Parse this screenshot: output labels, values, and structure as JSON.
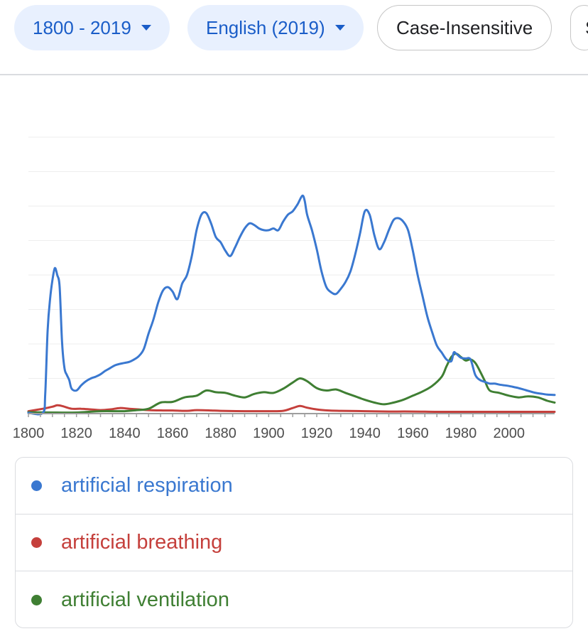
{
  "filters": {
    "year_range": "1800 - 2019",
    "corpus": "English (2019)",
    "case": "Case-Insensitive",
    "smoothing_partial": "S"
  },
  "chart_data": {
    "type": "line",
    "title": "",
    "xlabel": "",
    "ylabel": "",
    "xlim": [
      1800,
      2019
    ],
    "ylim": [
      0,
      8
    ],
    "grid": true,
    "legend_position": "bottom",
    "x_ticks": [
      "1800",
      "1820",
      "1840",
      "1860",
      "1880",
      "1900",
      "1920",
      "1940",
      "1960",
      "1980",
      "2000"
    ],
    "series": [
      {
        "name": "artificial respiration",
        "color": "#3a78d0",
        "points": [
          [
            1800,
            0.0
          ],
          [
            1806,
            0.0
          ],
          [
            1807,
            0.55
          ],
          [
            1808,
            2.4
          ],
          [
            1809,
            3.3
          ],
          [
            1810,
            3.85
          ],
          [
            1811,
            4.2
          ],
          [
            1812,
            4.0
          ],
          [
            1813,
            3.65
          ],
          [
            1814,
            2.05
          ],
          [
            1815,
            1.3
          ],
          [
            1816,
            1.1
          ],
          [
            1817,
            0.95
          ],
          [
            1818,
            0.7
          ],
          [
            1820,
            0.65
          ],
          [
            1822,
            0.8
          ],
          [
            1824,
            0.92
          ],
          [
            1826,
            1.0
          ],
          [
            1828,
            1.05
          ],
          [
            1830,
            1.12
          ],
          [
            1832,
            1.22
          ],
          [
            1834,
            1.3
          ],
          [
            1836,
            1.38
          ],
          [
            1838,
            1.42
          ],
          [
            1840,
            1.45
          ],
          [
            1842,
            1.48
          ],
          [
            1844,
            1.55
          ],
          [
            1846,
            1.65
          ],
          [
            1848,
            1.85
          ],
          [
            1850,
            2.3
          ],
          [
            1852,
            2.7
          ],
          [
            1854,
            3.2
          ],
          [
            1856,
            3.55
          ],
          [
            1858,
            3.65
          ],
          [
            1860,
            3.52
          ],
          [
            1862,
            3.3
          ],
          [
            1864,
            3.75
          ],
          [
            1866,
            4.0
          ],
          [
            1868,
            4.55
          ],
          [
            1870,
            5.3
          ],
          [
            1872,
            5.75
          ],
          [
            1874,
            5.8
          ],
          [
            1876,
            5.5
          ],
          [
            1878,
            5.1
          ],
          [
            1880,
            4.95
          ],
          [
            1882,
            4.7
          ],
          [
            1884,
            4.55
          ],
          [
            1886,
            4.8
          ],
          [
            1888,
            5.1
          ],
          [
            1890,
            5.35
          ],
          [
            1892,
            5.5
          ],
          [
            1894,
            5.45
          ],
          [
            1896,
            5.35
          ],
          [
            1898,
            5.3
          ],
          [
            1900,
            5.3
          ],
          [
            1902,
            5.35
          ],
          [
            1904,
            5.3
          ],
          [
            1906,
            5.55
          ],
          [
            1908,
            5.75
          ],
          [
            1910,
            5.85
          ],
          [
            1912,
            6.05
          ],
          [
            1914,
            6.3
          ],
          [
            1915,
            6.15
          ],
          [
            1916,
            5.75
          ],
          [
            1918,
            5.3
          ],
          [
            1920,
            4.75
          ],
          [
            1922,
            4.1
          ],
          [
            1924,
            3.65
          ],
          [
            1926,
            3.5
          ],
          [
            1928,
            3.45
          ],
          [
            1930,
            3.6
          ],
          [
            1932,
            3.8
          ],
          [
            1934,
            4.1
          ],
          [
            1936,
            4.6
          ],
          [
            1938,
            5.2
          ],
          [
            1940,
            5.85
          ],
          [
            1942,
            5.75
          ],
          [
            1944,
            5.15
          ],
          [
            1946,
            4.75
          ],
          [
            1948,
            4.95
          ],
          [
            1950,
            5.3
          ],
          [
            1952,
            5.6
          ],
          [
            1954,
            5.65
          ],
          [
            1956,
            5.55
          ],
          [
            1958,
            5.3
          ],
          [
            1960,
            4.7
          ],
          [
            1962,
            4.0
          ],
          [
            1964,
            3.4
          ],
          [
            1966,
            2.8
          ],
          [
            1968,
            2.35
          ],
          [
            1970,
            1.95
          ],
          [
            1972,
            1.75
          ],
          [
            1974,
            1.55
          ],
          [
            1976,
            1.5
          ],
          [
            1977,
            1.75
          ],
          [
            1978,
            1.72
          ],
          [
            1980,
            1.6
          ],
          [
            1982,
            1.58
          ],
          [
            1984,
            1.55
          ],
          [
            1986,
            1.1
          ],
          [
            1988,
            0.95
          ],
          [
            1990,
            0.9
          ],
          [
            1992,
            0.85
          ],
          [
            1994,
            0.85
          ],
          [
            1996,
            0.82
          ],
          [
            1998,
            0.8
          ],
          [
            2000,
            0.78
          ],
          [
            2002,
            0.75
          ],
          [
            2004,
            0.72
          ],
          [
            2006,
            0.68
          ],
          [
            2008,
            0.64
          ],
          [
            2010,
            0.6
          ],
          [
            2012,
            0.57
          ],
          [
            2014,
            0.55
          ],
          [
            2016,
            0.53
          ],
          [
            2019,
            0.52
          ]
        ]
      },
      {
        "name": "artificial breathing",
        "color": "#c5403c",
        "points": [
          [
            1800,
            0.05
          ],
          [
            1806,
            0.12
          ],
          [
            1810,
            0.18
          ],
          [
            1812,
            0.22
          ],
          [
            1814,
            0.2
          ],
          [
            1818,
            0.12
          ],
          [
            1822,
            0.12
          ],
          [
            1826,
            0.1
          ],
          [
            1830,
            0.08
          ],
          [
            1834,
            0.1
          ],
          [
            1838,
            0.14
          ],
          [
            1842,
            0.12
          ],
          [
            1846,
            0.1
          ],
          [
            1850,
            0.08
          ],
          [
            1856,
            0.07
          ],
          [
            1860,
            0.07
          ],
          [
            1866,
            0.06
          ],
          [
            1870,
            0.08
          ],
          [
            1876,
            0.07
          ],
          [
            1880,
            0.06
          ],
          [
            1890,
            0.05
          ],
          [
            1900,
            0.05
          ],
          [
            1906,
            0.06
          ],
          [
            1910,
            0.14
          ],
          [
            1913,
            0.2
          ],
          [
            1916,
            0.15
          ],
          [
            1920,
            0.1
          ],
          [
            1925,
            0.07
          ],
          [
            1930,
            0.06
          ],
          [
            1940,
            0.05
          ],
          [
            1950,
            0.04
          ],
          [
            1960,
            0.04
          ],
          [
            1970,
            0.03
          ],
          [
            1980,
            0.03
          ],
          [
            1990,
            0.03
          ],
          [
            2000,
            0.03
          ],
          [
            2010,
            0.03
          ],
          [
            2019,
            0.03
          ]
        ]
      },
      {
        "name": "artificial ventilation",
        "color": "#3f7f33",
        "points": [
          [
            1800,
            0.02
          ],
          [
            1810,
            0.01
          ],
          [
            1820,
            0.01
          ],
          [
            1830,
            0.05
          ],
          [
            1840,
            0.05
          ],
          [
            1845,
            0.08
          ],
          [
            1850,
            0.12
          ],
          [
            1855,
            0.3
          ],
          [
            1860,
            0.32
          ],
          [
            1865,
            0.45
          ],
          [
            1870,
            0.5
          ],
          [
            1874,
            0.65
          ],
          [
            1878,
            0.6
          ],
          [
            1882,
            0.58
          ],
          [
            1886,
            0.5
          ],
          [
            1890,
            0.45
          ],
          [
            1894,
            0.55
          ],
          [
            1898,
            0.6
          ],
          [
            1902,
            0.58
          ],
          [
            1906,
            0.7
          ],
          [
            1910,
            0.88
          ],
          [
            1913,
            1.0
          ],
          [
            1916,
            0.92
          ],
          [
            1920,
            0.72
          ],
          [
            1924,
            0.65
          ],
          [
            1928,
            0.68
          ],
          [
            1932,
            0.58
          ],
          [
            1936,
            0.48
          ],
          [
            1940,
            0.38
          ],
          [
            1944,
            0.3
          ],
          [
            1948,
            0.25
          ],
          [
            1952,
            0.3
          ],
          [
            1956,
            0.38
          ],
          [
            1960,
            0.5
          ],
          [
            1964,
            0.62
          ],
          [
            1968,
            0.78
          ],
          [
            1972,
            1.05
          ],
          [
            1974,
            1.35
          ],
          [
            1976,
            1.62
          ],
          [
            1978,
            1.72
          ],
          [
            1980,
            1.62
          ],
          [
            1982,
            1.52
          ],
          [
            1984,
            1.55
          ],
          [
            1986,
            1.45
          ],
          [
            1988,
            1.2
          ],
          [
            1990,
            0.92
          ],
          [
            1992,
            0.65
          ],
          [
            1996,
            0.58
          ],
          [
            2000,
            0.5
          ],
          [
            2004,
            0.45
          ],
          [
            2008,
            0.48
          ],
          [
            2012,
            0.45
          ],
          [
            2016,
            0.35
          ],
          [
            2019,
            0.3
          ]
        ]
      }
    ]
  }
}
